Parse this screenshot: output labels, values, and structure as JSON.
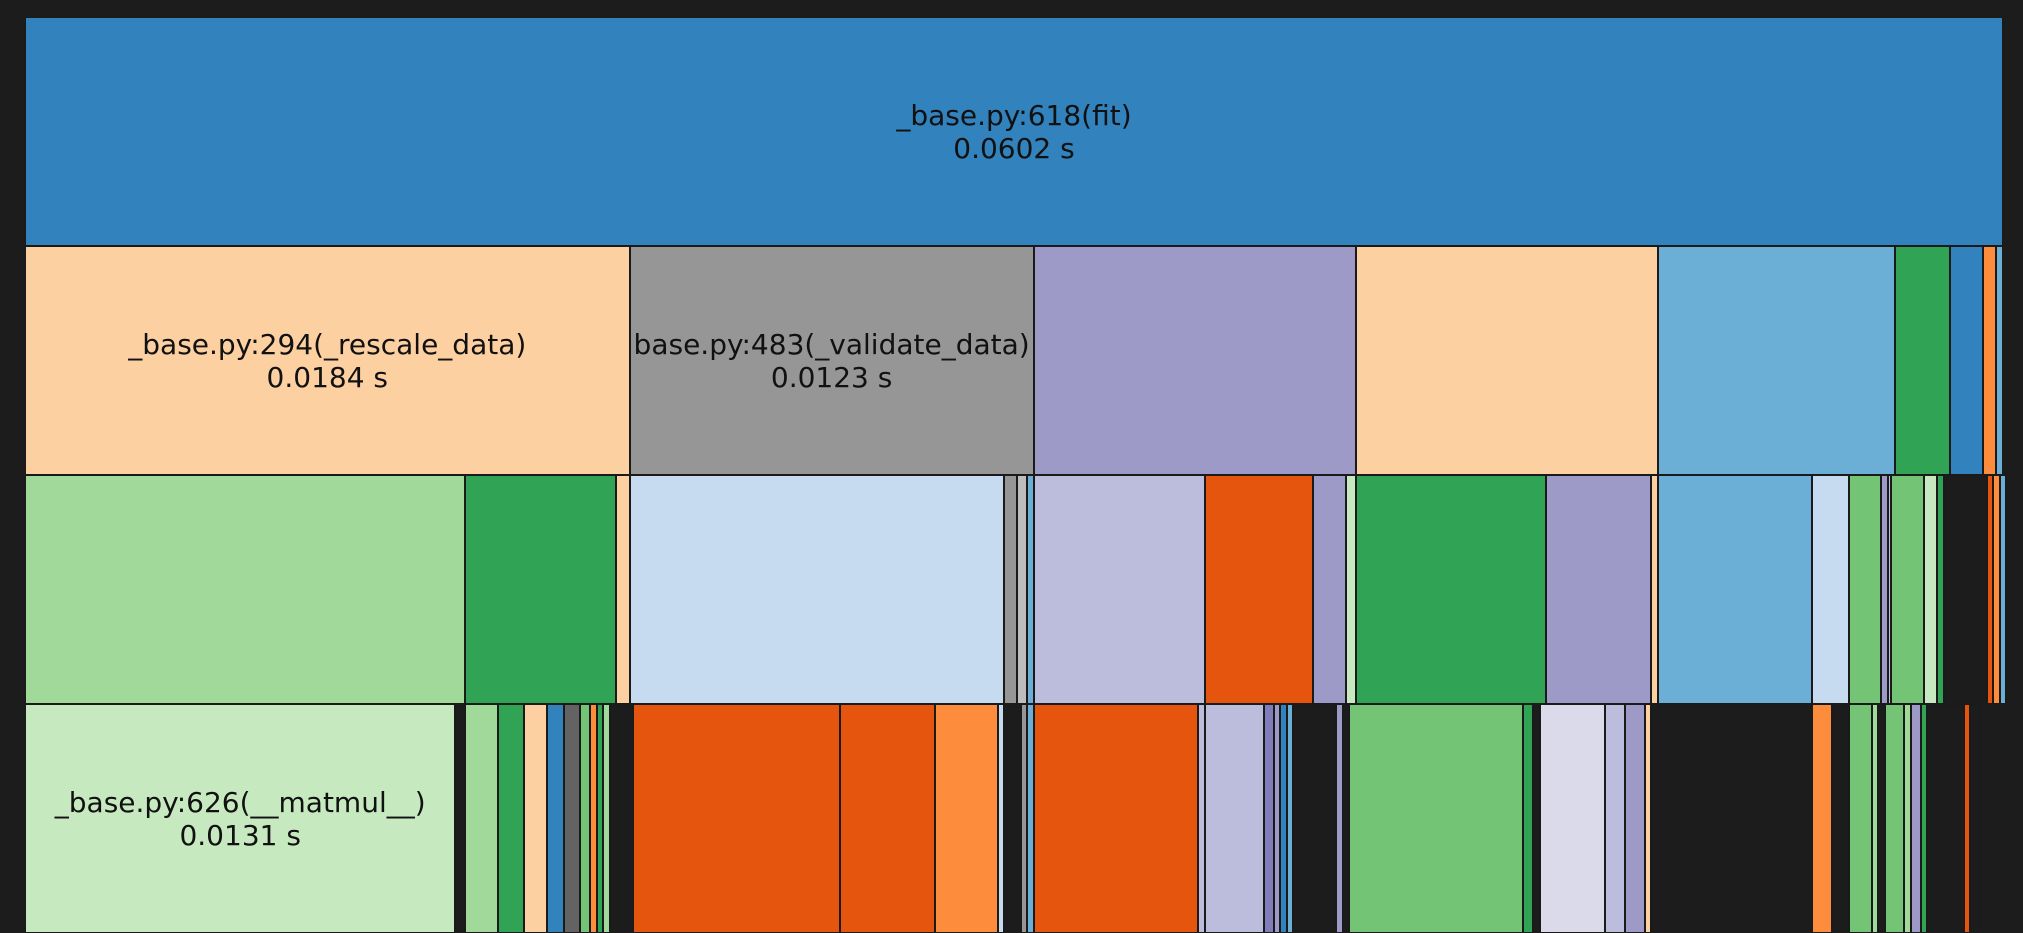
{
  "colors": {
    "background": "#1c1c1c",
    "border": "#1a1a1a",
    "text": "#111111"
  },
  "icicle": {
    "unit": "s",
    "levels": [
      [
        {
          "label": "_base.py:618(fit)",
          "time": "0.0602 s",
          "value": 0.0602,
          "color": "#3182bd"
        }
      ],
      [
        {
          "label": "_base.py:294(_rescale_data)",
          "time": "0.0184 s",
          "value": 0.0184,
          "color": "#fdd0a2"
        },
        {
          "label": "base.py:483(_validate_data)",
          "time": "0.0123 s",
          "value": 0.0123,
          "color": "#969696"
        },
        {
          "value": 0.0098,
          "color": "#9e9ac8"
        },
        {
          "value": 0.0092,
          "color": "#fdd0a2"
        },
        {
          "value": 0.0072,
          "color": "#6baed6"
        },
        {
          "value": 0.0017,
          "color": "#31a354"
        },
        {
          "value": 0.001,
          "color": "#3182bd"
        },
        {
          "value": 0.0004,
          "color": "#fd8d3c"
        },
        {
          "value": 0.0002,
          "color": "#6baed6"
        }
      ],
      [
        {
          "value": 0.0134,
          "color": "#a1d99b"
        },
        {
          "value": 0.0046,
          "color": "#31a354"
        },
        {
          "value": 0.0004,
          "color": "#fdd0a2"
        },
        {
          "value": 0.0114,
          "color": "#c6dbef"
        },
        {
          "value": 0.0004,
          "color": "#969696"
        },
        {
          "value": 0.0003,
          "color": "#bdbdbd"
        },
        {
          "value": 0.0002,
          "color": "#6baed6"
        },
        {
          "value": 0.0052,
          "color": "#bcbddc"
        },
        {
          "value": 0.0033,
          "color": "#e6550d"
        },
        {
          "value": 0.001,
          "color": "#9e9ac8"
        },
        {
          "value": 0.0003,
          "color": "#c7e9c0"
        },
        {
          "value": 0.0058,
          "color": "#31a354"
        },
        {
          "value": 0.0032,
          "color": "#9e9ac8"
        },
        {
          "value": 0.0002,
          "color": "#fdd0a2"
        },
        {
          "value": 0.0047,
          "color": "#6baed6"
        },
        {
          "value": 0.0011,
          "color": "#c6dbef"
        },
        {
          "value": 0.001,
          "color": "#74c476"
        },
        {
          "value": 0.0002,
          "color": "#9e9ac8"
        },
        {
          "value": 0.0001,
          "color": "#bcbddc"
        },
        {
          "value": 0.001,
          "color": "#74c476"
        },
        {
          "value": 0.0004,
          "color": "#c7e9c0"
        },
        {
          "value": 0.0002,
          "color": "#31a354"
        },
        {
          "value": 0.0013,
          "color": "#1c1c1c"
        },
        {
          "value": 0.0002,
          "color": "#e6550d"
        },
        {
          "value": 0.0002,
          "color": "#fd8d3c"
        },
        {
          "value": 0.0002,
          "color": "#6baed6"
        }
      ],
      [
        {
          "label": "_base.py:626(__matmul__)",
          "time": "0.0131 s",
          "value": 0.0131,
          "color": "#c7e9c0"
        },
        {
          "value": 0.0003,
          "color": "#1c1c1c"
        },
        {
          "value": 0.001,
          "color": "#a1d99b"
        },
        {
          "value": 0.0008,
          "color": "#31a354"
        },
        {
          "value": 0.0007,
          "color": "#fdd0a2"
        },
        {
          "value": 0.0005,
          "color": "#3182bd"
        },
        {
          "value": 0.0005,
          "color": "#636363"
        },
        {
          "value": 0.0003,
          "color": "#74c476"
        },
        {
          "value": 0.0002,
          "color": "#fd8d3c"
        },
        {
          "value": 0.0002,
          "color": "#31a354"
        },
        {
          "value": 0.0002,
          "color": "#a1d99b"
        },
        {
          "value": 0.0007,
          "color": "#1c1c1c"
        },
        {
          "value": 0.0063,
          "color": "#e6550d"
        },
        {
          "value": 0.0029,
          "color": "#e6550d"
        },
        {
          "value": 0.0019,
          "color": "#fd8d3c"
        },
        {
          "value": 0.0002,
          "color": "#c6dbef"
        },
        {
          "value": 0.0005,
          "color": "#1c1c1c"
        },
        {
          "value": 0.0002,
          "color": "#969696"
        },
        {
          "value": 0.0002,
          "color": "#6baed6"
        },
        {
          "value": 0.005,
          "color": "#e6550d"
        },
        {
          "value": 0.0002,
          "color": "#bcbddc"
        },
        {
          "value": 0.0018,
          "color": "#bcbddc"
        },
        {
          "value": 0.0003,
          "color": "#807dba"
        },
        {
          "value": 0.0002,
          "color": "#9e9ac8"
        },
        {
          "value": 0.0002,
          "color": "#3182bd"
        },
        {
          "value": 0.0002,
          "color": "#6baed6"
        },
        {
          "value": 0.0013,
          "color": "#1c1c1c"
        },
        {
          "value": 0.0002,
          "color": "#9e9ac8"
        },
        {
          "value": 0.0002,
          "color": "#1c1c1c"
        },
        {
          "value": 0.0053,
          "color": "#74c476"
        },
        {
          "value": 0.0003,
          "color": "#31a354"
        },
        {
          "value": 0.0002,
          "color": "#1c1c1c"
        },
        {
          "value": 0.002,
          "color": "#dadaeb"
        },
        {
          "value": 0.0006,
          "color": "#bcbddc"
        },
        {
          "value": 0.0006,
          "color": "#9e9ac8"
        },
        {
          "value": 0.0002,
          "color": "#fdd0a2"
        },
        {
          "value": 0.0049,
          "color": "#1c1c1c"
        },
        {
          "value": 0.0006,
          "color": "#fd8d3c"
        },
        {
          "value": 0.0005,
          "color": "#1c1c1c"
        },
        {
          "value": 0.0007,
          "color": "#74c476"
        },
        {
          "value": 0.0002,
          "color": "#a1d99b"
        },
        {
          "value": 0.0002,
          "color": "#1c1c1c"
        },
        {
          "value": 0.0006,
          "color": "#74c476"
        },
        {
          "value": 0.0002,
          "color": "#a1d99b"
        },
        {
          "value": 0.0003,
          "color": "#9e9ac8"
        },
        {
          "value": 0.0002,
          "color": "#31a354"
        },
        {
          "value": 0.0011,
          "color": "#1c1c1c"
        },
        {
          "value": 0.0002,
          "color": "#e6550d"
        },
        {
          "value": 0.0003,
          "color": "#1c1c1c"
        }
      ]
    ]
  }
}
